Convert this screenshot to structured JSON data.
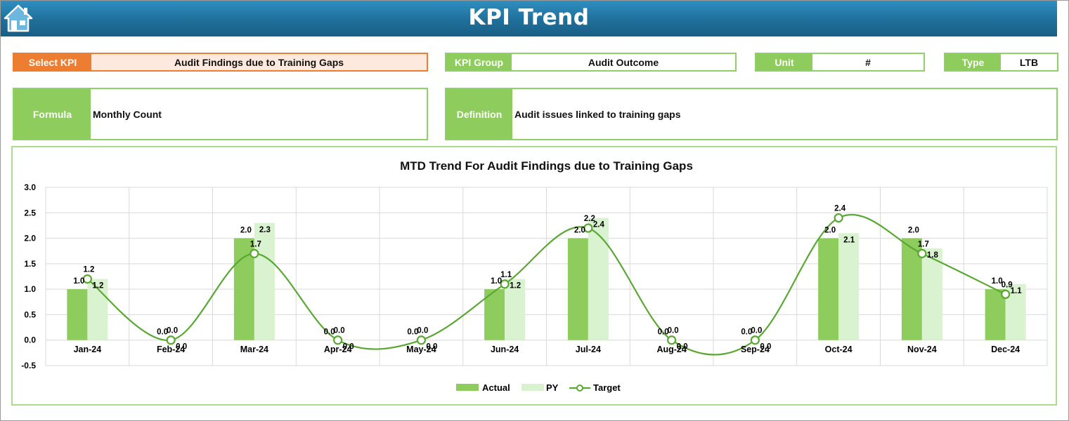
{
  "header": {
    "title": "KPI Trend",
    "home_icon": "home-icon"
  },
  "fields": {
    "select_kpi": {
      "label": "Select KPI",
      "value": "Audit Findings due to Training Gaps"
    },
    "kpi_group": {
      "label": "KPI Group",
      "value": "Audit Outcome"
    },
    "unit": {
      "label": "Unit",
      "value": "#"
    },
    "type": {
      "label": "Type",
      "value": "LTB"
    },
    "formula": {
      "label": "Formula",
      "value": "Monthly Count"
    },
    "definition": {
      "label": "Definition",
      "value": "Audit issues linked to training gaps"
    }
  },
  "colors": {
    "accent_green": "#8dcc5d",
    "py_green": "#d9f2cf",
    "target_line": "#5aa832",
    "select_orange": "#ed7d31",
    "header_blue": "#1f6f9a"
  },
  "chart_data": {
    "type": "bar",
    "title": "MTD Trend For Audit Findings due to Training Gaps",
    "categories": [
      "Jan-24",
      "Feb-24",
      "Mar-24",
      "Apr-24",
      "May-24",
      "Jun-24",
      "Jul-24",
      "Aug-24",
      "Sep-24",
      "Oct-24",
      "Nov-24",
      "Dec-24"
    ],
    "series": [
      {
        "name": "Actual",
        "type": "bar",
        "values": [
          1.0,
          0.0,
          2.0,
          0.0,
          0.0,
          1.0,
          2.0,
          0.0,
          0.0,
          2.0,
          2.0,
          1.0
        ]
      },
      {
        "name": "PY",
        "type": "bar",
        "values": [
          1.2,
          0.0,
          2.3,
          0.0,
          0.0,
          1.2,
          2.4,
          0.0,
          0.0,
          2.1,
          1.8,
          1.1
        ]
      },
      {
        "name": "Target",
        "type": "line",
        "smooth": true,
        "values": [
          1.2,
          0.0,
          1.7,
          0.0,
          0.0,
          1.1,
          2.2,
          0.0,
          0.0,
          2.4,
          1.7,
          0.9
        ]
      }
    ],
    "ylim": [
      -0.5,
      3.0
    ],
    "yticks": [
      "3.0",
      "2.5",
      "2.0",
      "1.5",
      "1.0",
      "0.5",
      "0.0",
      "-0.5"
    ],
    "grid": true,
    "legend": "bottom"
  }
}
